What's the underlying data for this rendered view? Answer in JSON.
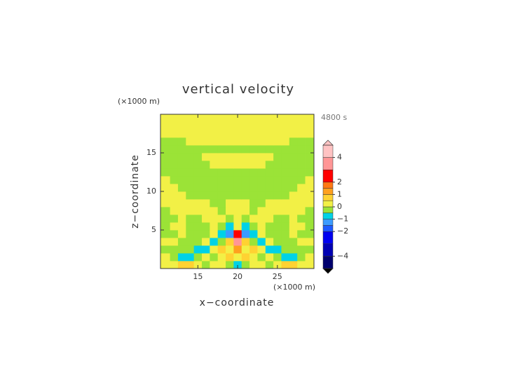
{
  "chart_data": {
    "type": "contour",
    "title": "vertical velocity",
    "x_unit_label": "(×1000 m)",
    "y_unit_label": "(×1000 m)",
    "time_label": "4800 s",
    "xlabel": "x−coordinate",
    "ylabel": "z−coordinate",
    "xlim": [
      10.3,
      29.6
    ],
    "ylim": [
      0,
      20
    ],
    "xticks": [
      15,
      20,
      25
    ],
    "yticks": [
      5,
      10,
      15
    ],
    "x": [
      11,
      12,
      13,
      14,
      15,
      16,
      17,
      18,
      19,
      20,
      21,
      22,
      23,
      24,
      25,
      26,
      27,
      28,
      29
    ],
    "y": [
      0.5,
      1.5,
      2.5,
      3.5,
      4.5,
      5.5,
      6.5,
      7.5,
      8.5,
      9.5,
      10.5,
      11.5,
      12.5,
      13.5,
      14.5,
      15.5,
      16.5,
      17.5,
      18.5,
      19.5
    ],
    "z": [
      [
        0.2,
        0.2,
        0.7,
        0.7,
        0.2,
        -0.2,
        0.2,
        0.2,
        -0.2,
        -0.7,
        -0.2,
        0.2,
        0.2,
        -0.2,
        0.2,
        0.7,
        0.7,
        0.2,
        0.2
      ],
      [
        0.2,
        -0.2,
        -0.7,
        -0.7,
        -0.2,
        0.2,
        -0.2,
        0.2,
        0.7,
        0.2,
        0.7,
        0.2,
        -0.2,
        0.2,
        -0.2,
        -0.7,
        -0.7,
        -0.2,
        0.2
      ],
      [
        -0.2,
        -0.2,
        -0.2,
        -0.2,
        -0.7,
        -0.7,
        0.2,
        0.7,
        0.2,
        1.2,
        0.2,
        0.7,
        0.2,
        -0.7,
        -0.7,
        -0.2,
        -0.2,
        -0.2,
        -0.2
      ],
      [
        0.2,
        0.2,
        -0.2,
        -0.2,
        -0.2,
        0.2,
        -0.7,
        -0.2,
        0.7,
        3.5,
        0.7,
        -0.2,
        -0.7,
        0.2,
        -0.2,
        -0.2,
        -0.2,
        0.2,
        0.2
      ],
      [
        -0.2,
        -0.2,
        0.2,
        -0.2,
        -0.2,
        -0.2,
        0.2,
        -0.7,
        -1.2,
        2.5,
        -1.2,
        -0.7,
        0.2,
        -0.2,
        -0.2,
        -0.2,
        0.2,
        -0.2,
        -0.2
      ],
      [
        -0.2,
        0.2,
        0.2,
        -0.2,
        -0.2,
        -0.2,
        0.2,
        -0.2,
        -0.7,
        0.2,
        -0.7,
        -0.2,
        0.2,
        -0.2,
        -0.2,
        -0.2,
        0.2,
        0.2,
        -0.2
      ],
      [
        -0.2,
        -0.2,
        0.2,
        -0.2,
        -0.2,
        0.2,
        0.2,
        0.2,
        -0.2,
        0.2,
        -0.2,
        0.2,
        0.2,
        0.2,
        -0.2,
        -0.2,
        0.2,
        -0.2,
        -0.2
      ],
      [
        -0.2,
        0.2,
        0.2,
        0.2,
        0.2,
        0.2,
        0.2,
        -0.2,
        0.2,
        0.2,
        0.2,
        -0.2,
        0.2,
        0.2,
        0.2,
        0.2,
        0.2,
        0.2,
        -0.2
      ],
      [
        0.2,
        0.2,
        0.2,
        0.2,
        0.2,
        0.2,
        -0.2,
        -0.2,
        0.2,
        0.2,
        0.2,
        -0.2,
        -0.2,
        0.2,
        0.2,
        0.2,
        0.2,
        0.2,
        0.2
      ],
      [
        0.2,
        0.2,
        0.2,
        -0.2,
        -0.2,
        -0.2,
        -0.2,
        -0.2,
        -0.2,
        -0.2,
        -0.2,
        -0.2,
        -0.2,
        -0.2,
        -0.2,
        -0.2,
        0.2,
        0.2,
        0.2
      ],
      [
        0.2,
        0.2,
        -0.2,
        -0.2,
        -0.2,
        -0.2,
        -0.2,
        -0.2,
        -0.2,
        -0.2,
        -0.2,
        -0.2,
        -0.2,
        -0.2,
        -0.2,
        -0.2,
        -0.2,
        0.2,
        0.2
      ],
      [
        0.2,
        -0.2,
        -0.2,
        -0.2,
        -0.2,
        -0.2,
        -0.2,
        -0.2,
        -0.2,
        -0.2,
        -0.2,
        -0.2,
        -0.2,
        -0.2,
        -0.2,
        -0.2,
        -0.2,
        -0.2,
        0.2
      ],
      [
        -0.2,
        -0.2,
        -0.2,
        -0.2,
        -0.2,
        -0.2,
        -0.2,
        -0.2,
        -0.2,
        -0.2,
        -0.2,
        -0.2,
        -0.2,
        -0.2,
        -0.2,
        -0.2,
        -0.2,
        -0.2,
        -0.2
      ],
      [
        -0.2,
        -0.2,
        -0.2,
        -0.2,
        -0.2,
        -0.2,
        0.2,
        0.2,
        0.2,
        0.2,
        0.2,
        0.2,
        0.2,
        -0.2,
        -0.2,
        -0.2,
        -0.2,
        -0.2,
        -0.2
      ],
      [
        -0.2,
        -0.2,
        -0.2,
        -0.2,
        -0.2,
        0.2,
        0.2,
        0.2,
        0.2,
        0.2,
        0.2,
        0.2,
        0.2,
        0.2,
        -0.2,
        -0.2,
        -0.2,
        -0.2,
        -0.2
      ],
      [
        -0.2,
        -0.2,
        -0.2,
        -0.2,
        -0.2,
        -0.2,
        -0.2,
        -0.2,
        -0.2,
        -0.2,
        -0.2,
        -0.2,
        -0.2,
        -0.2,
        -0.2,
        -0.2,
        -0.2,
        -0.2,
        -0.2
      ],
      [
        -0.2,
        -0.2,
        -0.2,
        0.2,
        0.2,
        0.2,
        0.2,
        0.2,
        0.2,
        0.2,
        0.2,
        0.2,
        0.2,
        0.2,
        0.2,
        0.2,
        -0.2,
        -0.2,
        -0.2
      ],
      [
        0.2,
        0.2,
        0.2,
        0.2,
        0.2,
        0.2,
        0.2,
        0.2,
        0.2,
        0.2,
        0.2,
        0.2,
        0.2,
        0.2,
        0.2,
        0.2,
        0.2,
        0.2,
        0.2
      ],
      [
        0.2,
        0.2,
        0.2,
        0.2,
        0.2,
        0.2,
        0.2,
        0.2,
        0.2,
        0.2,
        0.2,
        0.2,
        0.2,
        0.2,
        0.2,
        0.2,
        0.2,
        0.2,
        0.2
      ],
      [
        0.2,
        0.2,
        0.2,
        0.2,
        0.2,
        0.2,
        0.2,
        0.2,
        0.2,
        0.2,
        0.2,
        0.2,
        0.2,
        0.2,
        0.2,
        0.2,
        0.2,
        0.2,
        0.2
      ]
    ],
    "levels": [
      -5,
      -4,
      -3,
      -2,
      -1.5,
      -1,
      -0.5,
      0,
      0.5,
      1,
      1.5,
      2,
      3,
      4,
      5
    ],
    "colors": [
      "#00006e",
      "#0000b4",
      "#0000f0",
      "#1e5aff",
      "#3c9bff",
      "#00d2e6",
      "#9be337",
      "#f2f046",
      "#ffd232",
      "#ffa01e",
      "#ff7814",
      "#ff0000",
      "#ff9696",
      "#ffc3c3"
    ],
    "over_color": "#ffc3c3",
    "under_color": "#000000",
    "clim": [
      -5,
      5
    ],
    "cticks": [
      {
        "value": -4,
        "label": "−4"
      },
      {
        "value": -2,
        "label": "−2"
      },
      {
        "value": -1,
        "label": "−1"
      },
      0,
      1,
      2,
      4
    ]
  }
}
